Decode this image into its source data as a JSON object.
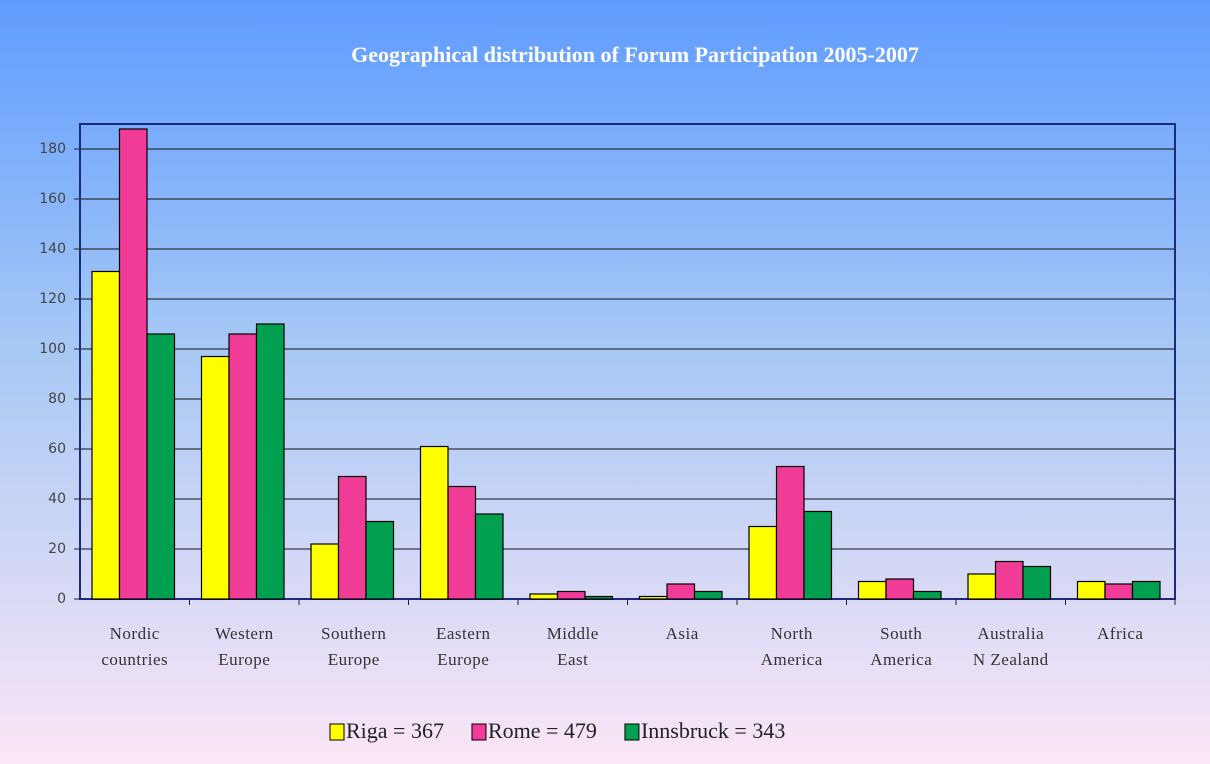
{
  "chart_data": {
    "type": "bar",
    "title": "Geographical distribution of Forum Participation 2005-2007",
    "categories": [
      "Nordic countries",
      "Western Europe",
      "Southern Europe",
      "Eastern Europe",
      "Middle East",
      "Asia",
      "North America",
      "South America",
      "Australia N Zealand",
      "Africa"
    ],
    "series": [
      {
        "name": "Riga = 367",
        "color": "#ffff00",
        "values": [
          131,
          97,
          22,
          61,
          2,
          1,
          29,
          7,
          10,
          7
        ]
      },
      {
        "name": "Rome = 479",
        "color": "#f03c96",
        "values": [
          188,
          106,
          49,
          45,
          3,
          6,
          53,
          8,
          15,
          6
        ]
      },
      {
        "name": "Innsbruck = 343",
        "color": "#00a050",
        "values": [
          106,
          110,
          31,
          34,
          1,
          3,
          35,
          3,
          13,
          7
        ]
      }
    ],
    "ylim": [
      0,
      190
    ],
    "yticks": [
      0,
      20,
      40,
      60,
      80,
      100,
      120,
      140,
      160,
      180
    ],
    "grid": true,
    "legend": "bottom"
  }
}
